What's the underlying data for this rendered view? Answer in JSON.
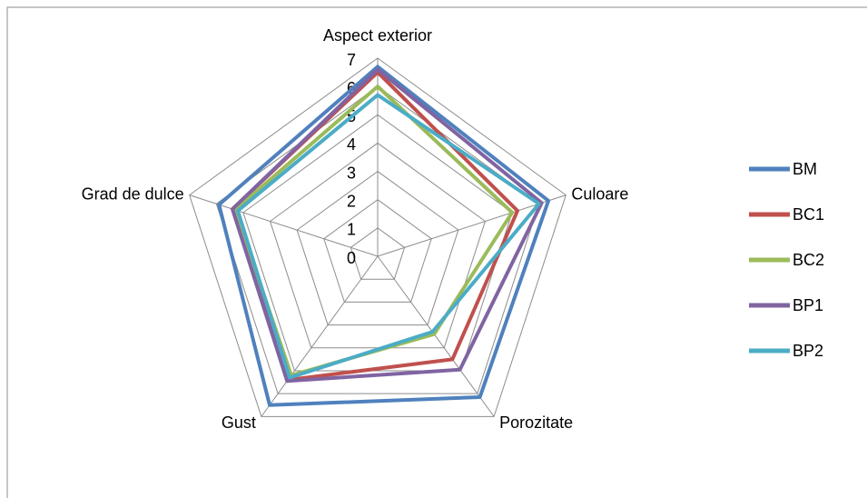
{
  "chart_data": {
    "type": "radar",
    "categories": [
      "Aspect exterior",
      "Culoare",
      "Porozitate",
      "Gust",
      "Grad de dulce"
    ],
    "rlim": [
      0,
      7
    ],
    "rticks": [
      0,
      1,
      2,
      3,
      4,
      5,
      6,
      7
    ],
    "grid": true,
    "legend": "right",
    "series": [
      {
        "name": "BM",
        "color": "#4f81bd",
        "values": [
          6.7,
          6.35,
          6.15,
          6.5,
          5.9
        ]
      },
      {
        "name": "BC1",
        "color": "#c0504d",
        "values": [
          6.5,
          5.2,
          4.5,
          5.4,
          5.4
        ]
      },
      {
        "name": "BC2",
        "color": "#9bbb59",
        "values": [
          6.0,
          5.0,
          3.4,
          5.2,
          5.3
        ]
      },
      {
        "name": "BP1",
        "color": "#8064a2",
        "values": [
          6.6,
          6.1,
          4.95,
          5.45,
          5.4
        ]
      },
      {
        "name": "BP2",
        "color": "#4bacc6",
        "values": [
          5.7,
          6.0,
          3.3,
          5.3,
          5.2
        ]
      }
    ]
  }
}
